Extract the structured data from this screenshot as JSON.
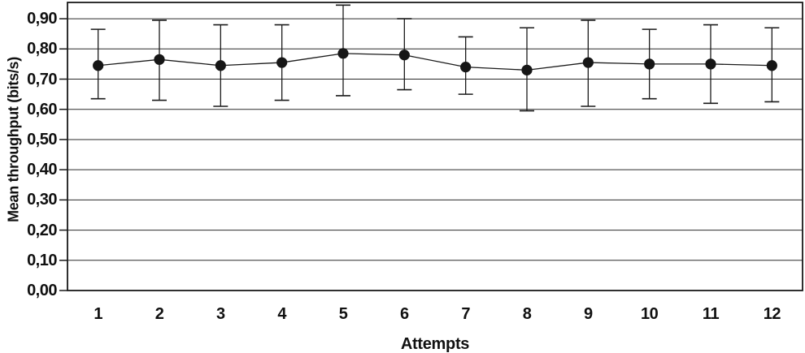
{
  "chart_data": {
    "type": "line",
    "title": "",
    "xlabel": "Attempts",
    "ylabel": "Mean throughput (bits/s)",
    "categories": [
      "1",
      "2",
      "3",
      "4",
      "5",
      "6",
      "7",
      "8",
      "9",
      "10",
      "11",
      "12"
    ],
    "series": [
      {
        "name": "Mean throughput",
        "values": [
          0.745,
          0.765,
          0.745,
          0.755,
          0.785,
          0.78,
          0.74,
          0.73,
          0.755,
          0.75,
          0.75,
          0.745
        ],
        "error_upper": [
          0.865,
          0.895,
          0.88,
          0.88,
          0.945,
          0.9,
          0.84,
          0.87,
          0.895,
          0.865,
          0.88,
          0.87
        ],
        "error_lower": [
          0.635,
          0.63,
          0.61,
          0.63,
          0.645,
          0.665,
          0.65,
          0.595,
          0.61,
          0.635,
          0.62,
          0.625
        ]
      }
    ],
    "ylim": [
      0,
      0.954
    ],
    "yticks": [
      0,
      0.1,
      0.2,
      0.3,
      0.4,
      0.5,
      0.6,
      0.7,
      0.8,
      0.9
    ],
    "ytick_labels": [
      "0,00",
      "0,10",
      "0,20",
      "0,30",
      "0,40",
      "0,50",
      "0,60",
      "0,70",
      "0,80",
      "0,90"
    ],
    "decimal_separator": ",",
    "grid": "horizontal",
    "legend_position": "none",
    "marker": "filled-circle",
    "error_bars": "caps-both-ends",
    "colors": {
      "line": "#1a1a1a",
      "marker": "#161616",
      "grid": "#2b2b2b",
      "frame": "#1a1a1a",
      "background": "#ffffff",
      "text": "#111111"
    }
  }
}
